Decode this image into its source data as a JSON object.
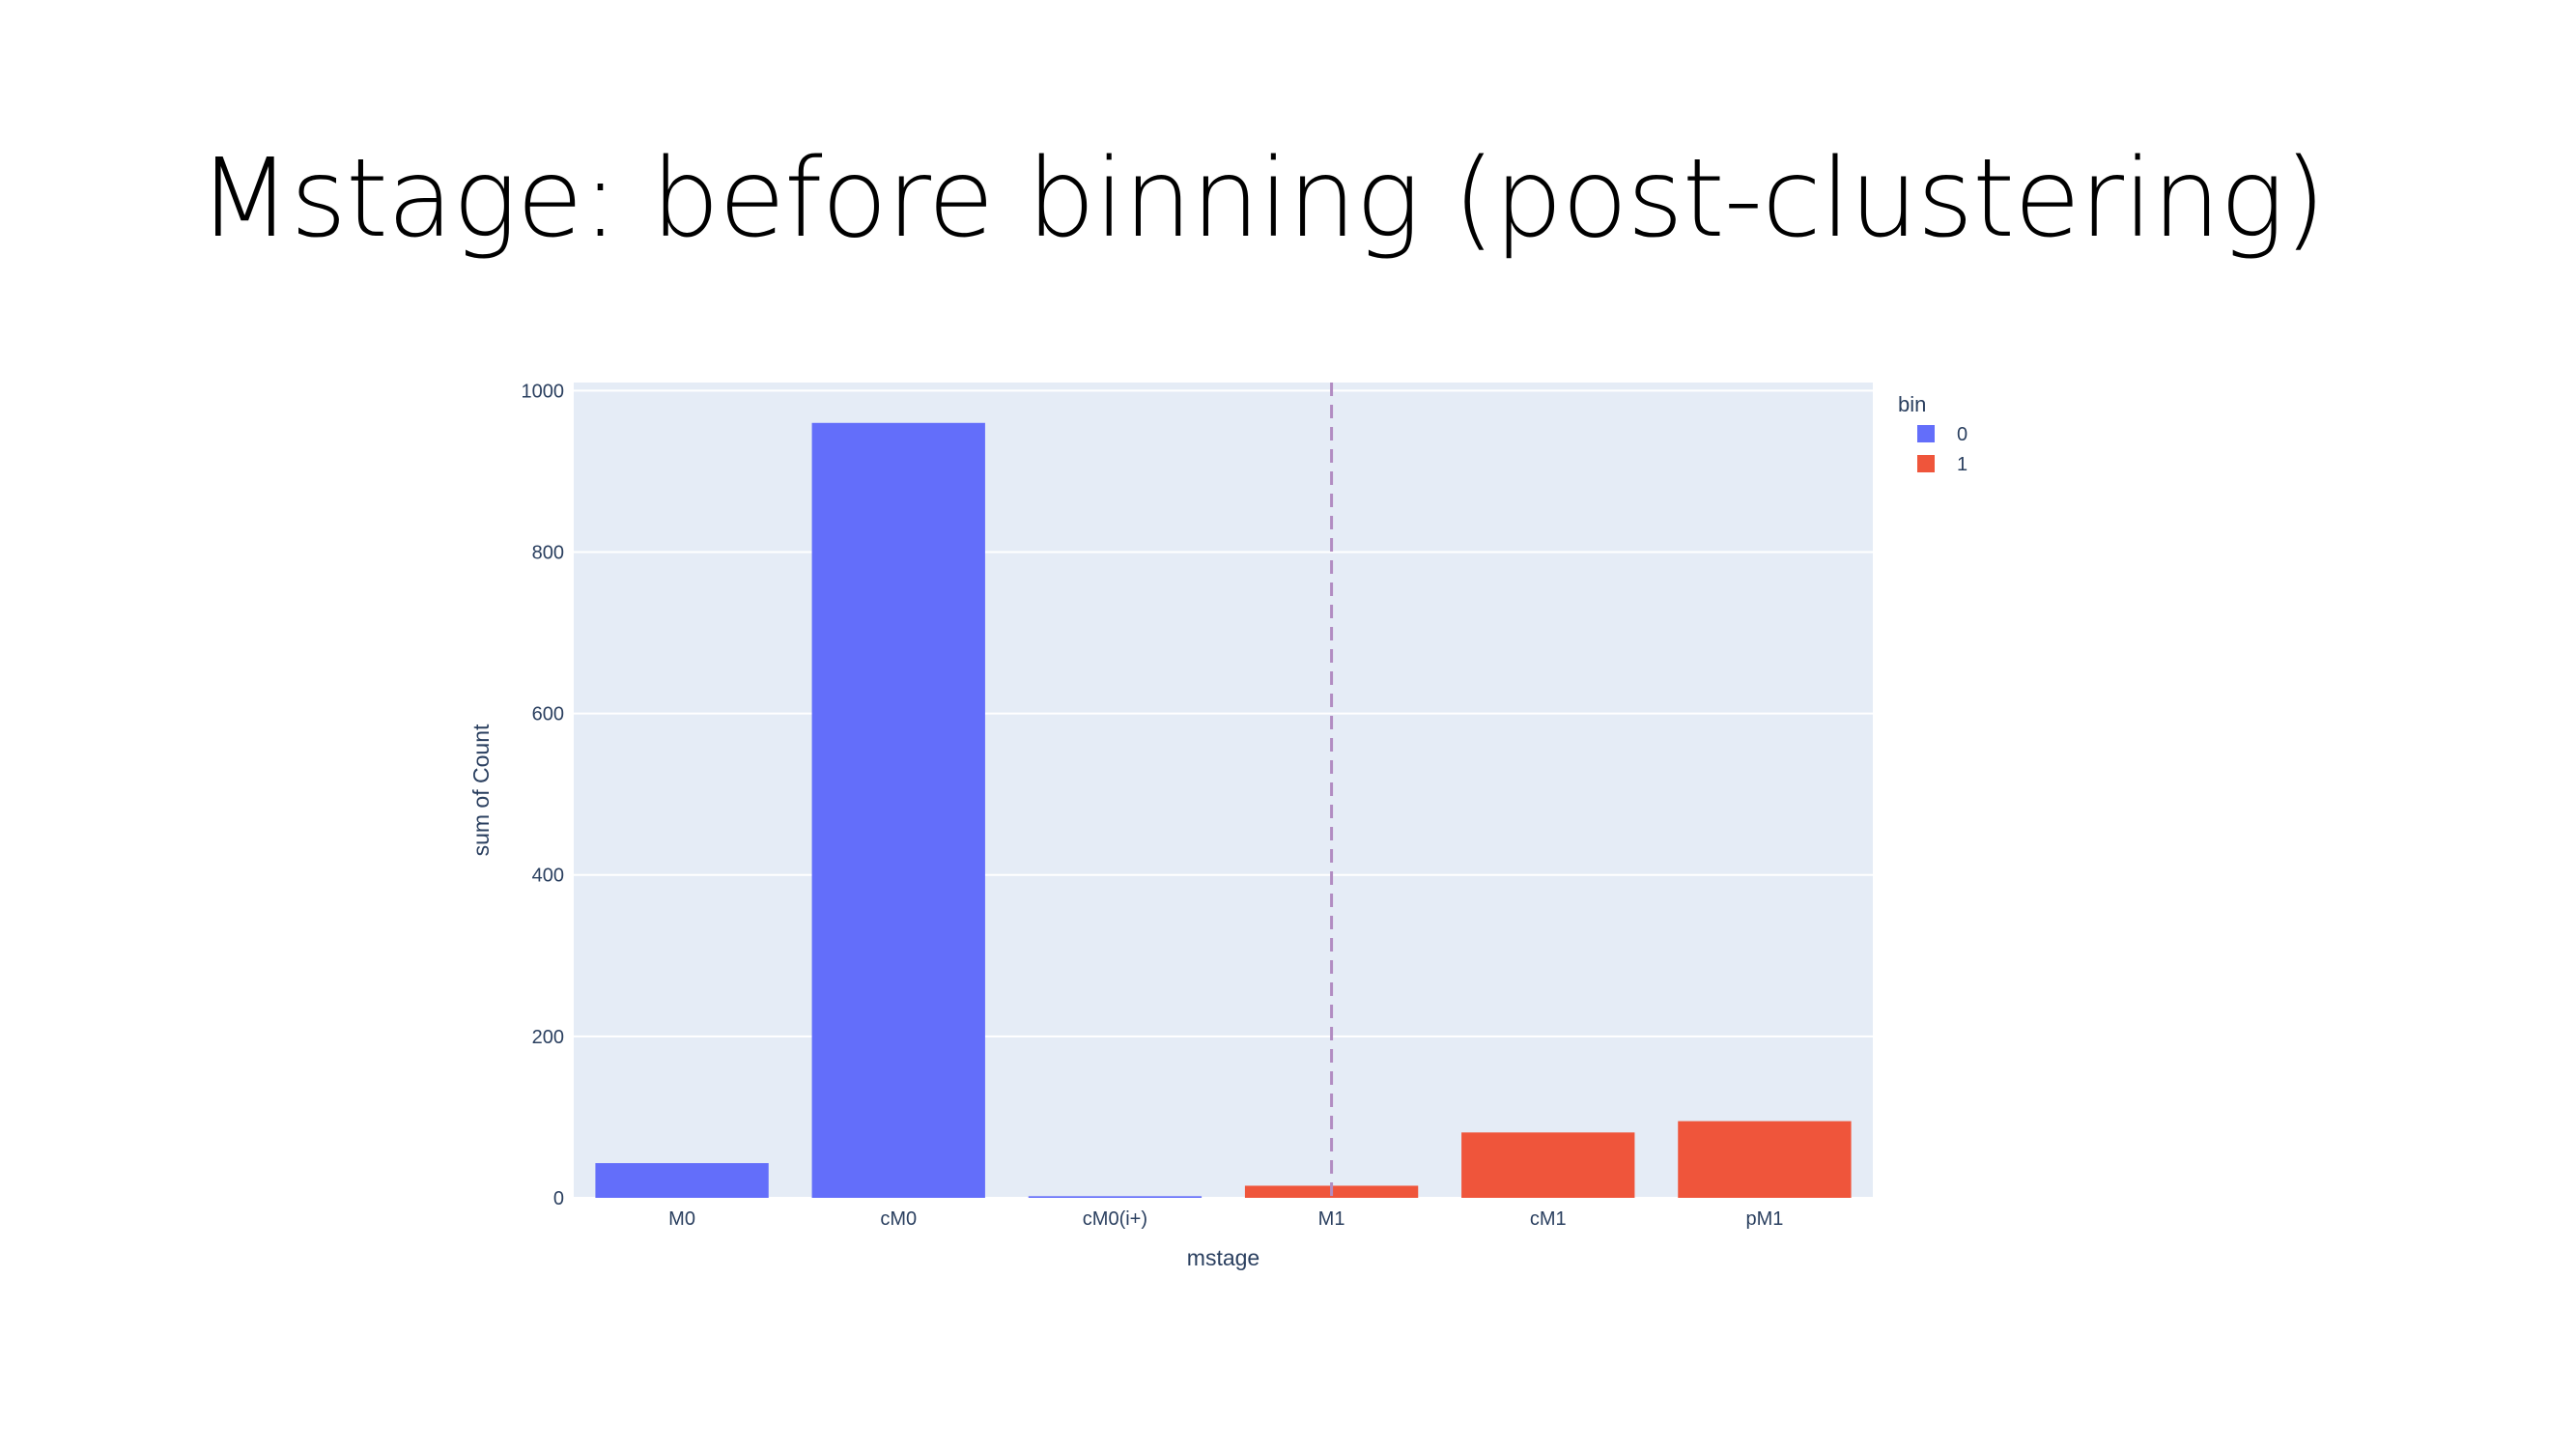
{
  "slide": {
    "title": "Mstage: before binning (post-clustering)"
  },
  "chart_data": {
    "type": "bar",
    "categories": [
      "M0",
      "cM0",
      "cM0(i+)",
      "M1",
      "cM1",
      "pM1"
    ],
    "values": [
      43,
      960,
      2,
      15,
      81,
      95
    ],
    "bins": [
      "0",
      "0",
      "0",
      "1",
      "1",
      "1"
    ],
    "xlabel": "mstage",
    "ylabel": "sum of Count",
    "ylim": [
      0,
      1010
    ],
    "yticks": [
      0,
      200,
      400,
      600,
      800,
      1000
    ],
    "grid": true,
    "legend": {
      "title": "bin",
      "placement": "top-right",
      "entries": [
        {
          "name": "0",
          "color": "#636efa"
        },
        {
          "name": "1",
          "color": "#ef553b"
        }
      ]
    },
    "vline": {
      "at_category": "M1",
      "style": "dashed",
      "color": "#b28cc2"
    },
    "plot_background": "#e5ecf6"
  }
}
